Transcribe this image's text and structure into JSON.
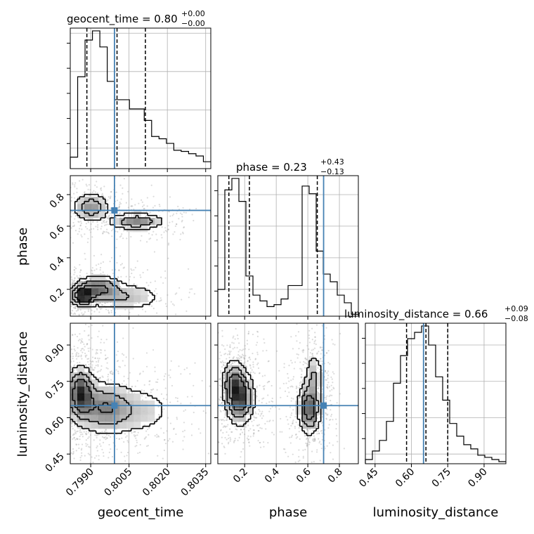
{
  "chart_data": {
    "type": "corner",
    "parameters": [
      "geocent_time",
      "phase",
      "luminosity_distance"
    ],
    "axis_labels": {
      "geocent_time": "geocent_time",
      "phase": "phase",
      "luminosity_distance": "luminosity_distance"
    },
    "ranges": {
      "geocent_time": [
        0.7982,
        0.8037
      ],
      "phase": [
        0.03,
        0.92
      ],
      "luminosity_distance": [
        0.41,
        0.99
      ]
    },
    "ticks": {
      "geocent_time": [
        0.799,
        0.8005,
        0.802,
        0.8035
      ],
      "phase": [
        0.2,
        0.4,
        0.6,
        0.8
      ],
      "luminosity_distance": [
        0.45,
        0.6,
        0.75,
        0.9
      ]
    },
    "tick_labels": {
      "geocent_time": [
        "0.7990",
        "0.8005",
        "0.8020",
        "0.8035"
      ],
      "phase_x": [
        "0.2",
        "0.4",
        "0.6",
        "0.8"
      ],
      "phase_y": [
        "0.2",
        "0.4",
        "0.6",
        "0.8"
      ],
      "luminosity_distance_x": [
        "0.45",
        "0.60",
        "0.75",
        "0.90"
      ],
      "luminosity_distance_y": [
        "0.45",
        "0.60",
        "0.75",
        "0.90"
      ]
    },
    "titles": {
      "geocent_time": {
        "main": "geocent_time = 0.80",
        "plus": "+0.00",
        "minus": "−0.00"
      },
      "phase": {
        "main": "phase = 0.23",
        "plus": "+0.43",
        "minus": "−0.13"
      },
      "luminosity_distance": {
        "main": "luminosity_distance = 0.66",
        "plus": "+0.09",
        "minus": "−0.08"
      }
    },
    "quantiles": {
      "geocent_time": [
        0.79885,
        0.80003,
        0.80114
      ],
      "phase": [
        0.1,
        0.23,
        0.66
      ],
      "luminosity_distance": [
        0.58,
        0.66,
        0.75
      ]
    },
    "truths": {
      "geocent_time": 0.79993,
      "phase": 0.7,
      "luminosity_distance": 0.65
    },
    "histograms": {
      "geocent_time": {
        "bins": 19,
        "counts": [
          0.5,
          4.0,
          5.6,
          6.0,
          5.3,
          3.8,
          3.0,
          3.0,
          2.6,
          2.6,
          2.1,
          1.4,
          1.3,
          1.1,
          0.8,
          0.75,
          0.65,
          0.55,
          0.3
        ]
      },
      "phase": {
        "bins": 20,
        "counts": [
          1.4,
          6.6,
          7.2,
          6.0,
          2.1,
          1.1,
          0.8,
          0.5,
          0.6,
          0.9,
          1.6,
          1.6,
          6.8,
          6.4,
          3.4,
          2.2,
          1.8,
          1.1,
          0.7,
          0.1
        ]
      },
      "luminosity_distance": {
        "bins": 20,
        "counts": [
          0.2,
          0.6,
          1.1,
          2.0,
          3.8,
          5.1,
          5.9,
          6.2,
          6.5,
          5.6,
          4.1,
          3.0,
          1.9,
          1.3,
          0.9,
          0.7,
          0.4,
          0.3,
          0.2,
          0.1
        ]
      }
    },
    "density_2d": {
      "phase_vs_geocent_time": {
        "modes": [
          {
            "x": 0.7987,
            "y": 0.16,
            "sx": 0.00025,
            "sy": 0.035,
            "w": 1.0,
            "rot": -0.3
          },
          {
            "x": 0.7993,
            "y": 0.21,
            "sx": 0.0005,
            "sy": 0.045,
            "w": 0.6,
            "rot": -0.3
          },
          {
            "x": 0.8003,
            "y": 0.15,
            "sx": 0.0009,
            "sy": 0.05,
            "w": 0.35,
            "rot": -0.2
          },
          {
            "x": 0.799,
            "y": 0.72,
            "sx": 0.0004,
            "sy": 0.05,
            "w": 0.55,
            "rot": 0.0
          },
          {
            "x": 0.8008,
            "y": 0.63,
            "sx": 0.0006,
            "sy": 0.03,
            "w": 0.6,
            "rot": 0.0
          }
        ]
      },
      "luminosity_distance_vs_geocent_time": {
        "modes": [
          {
            "x": 0.7986,
            "y": 0.7,
            "sx": 0.0003,
            "sy": 0.06,
            "w": 1.0,
            "rot": 0.4
          },
          {
            "x": 0.7995,
            "y": 0.64,
            "sx": 0.0006,
            "sy": 0.06,
            "w": 0.6,
            "rot": 0.4
          },
          {
            "x": 0.8008,
            "y": 0.63,
            "sx": 0.0009,
            "sy": 0.06,
            "w": 0.3,
            "rot": 0.2
          }
        ]
      },
      "luminosity_distance_vs_phase": {
        "modes": [
          {
            "x": 0.17,
            "y": 0.68,
            "sx": 0.05,
            "sy": 0.06,
            "w": 1.0,
            "rot": 0.0
          },
          {
            "x": 0.13,
            "y": 0.75,
            "sx": 0.04,
            "sy": 0.05,
            "w": 0.6,
            "rot": 0.0
          },
          {
            "x": 0.61,
            "y": 0.64,
            "sx": 0.04,
            "sy": 0.06,
            "w": 0.95,
            "rot": 0.0
          },
          {
            "x": 0.64,
            "y": 0.78,
            "sx": 0.03,
            "sy": 0.05,
            "w": 0.4,
            "rot": 0.0
          }
        ]
      }
    },
    "colors": {
      "truth": "#4682b4",
      "hist": "#000000",
      "quantile": "#000000",
      "grid": "#b0b0b0",
      "points": "#9a9a9a",
      "density_max": "#000000"
    },
    "grid": true
  }
}
